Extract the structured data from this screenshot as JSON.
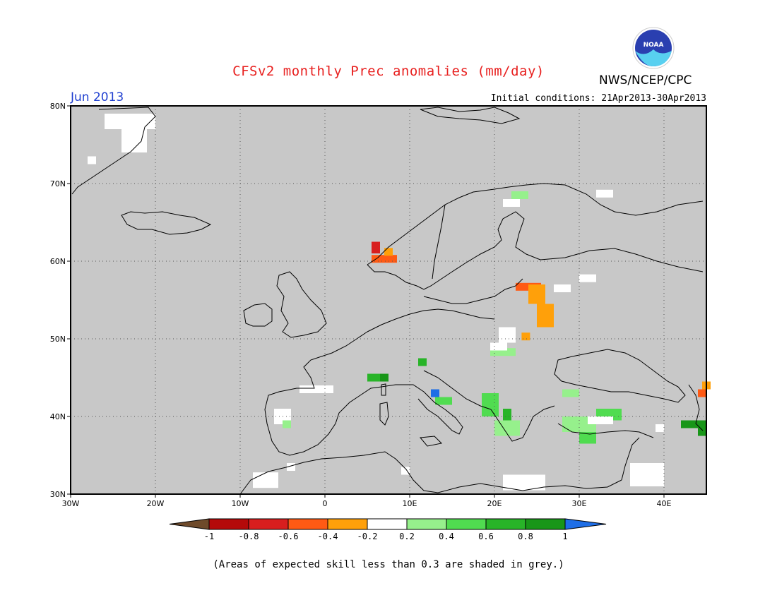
{
  "header": {
    "title": "CFSv2 monthly Prec anomalies (mm/day)",
    "agency": "NWS/NCEP/CPC",
    "logo_text": "NOAA",
    "month": "Jun 2013",
    "initial_conditions": "Initial conditions: 21Apr2013-30Apr2013"
  },
  "map": {
    "lon_range": [
      -30,
      45
    ],
    "lat_range": [
      30,
      80
    ],
    "background_color": "#c8c8c8",
    "gridlines": "dotted",
    "lon_tick_labels": [
      "30W",
      "20W",
      "10W",
      "0",
      "10E",
      "20E",
      "30E",
      "40E"
    ],
    "lat_tick_labels": [
      "80N",
      "70N",
      "60N",
      "50N",
      "40N",
      "30N"
    ]
  },
  "legend": {
    "bins": [
      {
        "color": "#6e4a2a"
      },
      {
        "color": "#b40a0a"
      },
      {
        "color": "#d81e1e"
      },
      {
        "color": "#ff5a14"
      },
      {
        "color": "#ffa00a"
      },
      {
        "color": "#ffffff"
      },
      {
        "color": "#96f08c"
      },
      {
        "color": "#50dc50"
      },
      {
        "color": "#28b428"
      },
      {
        "color": "#189618"
      },
      {
        "color": "#1e6ee6"
      }
    ],
    "tick_labels": [
      "-1",
      "-0.8",
      "-0.6",
      "-0.4",
      "-0.2",
      "0.2",
      "0.4",
      "0.6",
      "0.8",
      "1"
    ]
  },
  "anomaly_cells": [
    {
      "lon": -26,
      "lat": 77,
      "w": 6,
      "h": 2,
      "value": 0
    },
    {
      "lon": -24,
      "lat": 74,
      "w": 3,
      "h": 3,
      "value": 0
    },
    {
      "lon": -28,
      "lat": 72.5,
      "w": 1,
      "h": 1,
      "value": 0
    },
    {
      "lon": 5.5,
      "lat": 61,
      "w": 1,
      "h": 1.5,
      "value": -0.7
    },
    {
      "lon": 5.5,
      "lat": 59.8,
      "w": 3,
      "h": 1,
      "value": -0.5
    },
    {
      "lon": 7,
      "lat": 60.7,
      "w": 1,
      "h": 1,
      "value": -0.3
    },
    {
      "lon": 21,
      "lat": 67,
      "w": 2,
      "h": 1,
      "value": 0
    },
    {
      "lon": 22,
      "lat": 68,
      "w": 2,
      "h": 1,
      "value": 0.3
    },
    {
      "lon": 22.5,
      "lat": 56.2,
      "w": 3,
      "h": 1,
      "value": -0.5
    },
    {
      "lon": 24,
      "lat": 54.5,
      "w": 2,
      "h": 2.5,
      "value": -0.3
    },
    {
      "lon": 25,
      "lat": 51.5,
      "w": 2,
      "h": 3,
      "value": -0.3
    },
    {
      "lon": 27,
      "lat": 56,
      "w": 2,
      "h": 1,
      "value": 0
    },
    {
      "lon": 20.5,
      "lat": 49.5,
      "w": 2,
      "h": 2,
      "value": 0
    },
    {
      "lon": 23.2,
      "lat": 49.8,
      "w": 1,
      "h": 1,
      "value": -0.3
    },
    {
      "lon": 30,
      "lat": 57.3,
      "w": 2,
      "h": 1,
      "value": 0
    },
    {
      "lon": 32,
      "lat": 68.2,
      "w": 2,
      "h": 1,
      "value": 0
    },
    {
      "lon": 19.5,
      "lat": 47.8,
      "w": 3,
      "h": 1,
      "value": 0.3
    },
    {
      "lon": 19.5,
      "lat": 48.5,
      "w": 2,
      "h": 1,
      "value": 0
    },
    {
      "lon": 5,
      "lat": 44.5,
      "w": 2,
      "h": 1,
      "value": 0.7
    },
    {
      "lon": 6.5,
      "lat": 44.5,
      "w": 1,
      "h": 1,
      "value": 0.9
    },
    {
      "lon": 11,
      "lat": 46.5,
      "w": 1,
      "h": 1,
      "value": 0.7
    },
    {
      "lon": 12.5,
      "lat": 42.5,
      "w": 1,
      "h": 1,
      "value": 1
    },
    {
      "lon": 13,
      "lat": 41.5,
      "w": 2,
      "h": 1,
      "value": 0.5
    },
    {
      "lon": 18.5,
      "lat": 40,
      "w": 2,
      "h": 3,
      "value": 0.4
    },
    {
      "lon": 21,
      "lat": 39,
      "w": 1,
      "h": 2,
      "value": 0.7
    },
    {
      "lon": 20,
      "lat": 37.5,
      "w": 3,
      "h": 2,
      "value": 0.3
    },
    {
      "lon": 28,
      "lat": 38,
      "w": 4,
      "h": 2,
      "value": 0.3
    },
    {
      "lon": 30,
      "lat": 36.5,
      "w": 2,
      "h": 1.5,
      "value": 0.4
    },
    {
      "lon": 32,
      "lat": 39.5,
      "w": 3,
      "h": 1.5,
      "value": 0.4
    },
    {
      "lon": 31,
      "lat": 39,
      "w": 3,
      "h": 1,
      "value": 0
    },
    {
      "lon": 28,
      "lat": 42.5,
      "w": 2,
      "h": 1,
      "value": 0.3
    },
    {
      "lon": -3,
      "lat": 43,
      "w": 4,
      "h": 1,
      "value": 0
    },
    {
      "lon": -6,
      "lat": 39,
      "w": 2,
      "h": 2,
      "value": 0
    },
    {
      "lon": -5,
      "lat": 38.5,
      "w": 1,
      "h": 1,
      "value": 0.3
    },
    {
      "lon": -4.5,
      "lat": 33,
      "w": 1,
      "h": 1,
      "value": 0
    },
    {
      "lon": -8.5,
      "lat": 30.8,
      "w": 3,
      "h": 2,
      "value": 0
    },
    {
      "lon": 9,
      "lat": 32.5,
      "w": 1,
      "h": 1,
      "value": 0
    },
    {
      "lon": 21,
      "lat": 30.5,
      "w": 5,
      "h": 2,
      "value": 0
    },
    {
      "lon": 36,
      "lat": 31,
      "w": 4,
      "h": 3,
      "value": 0
    },
    {
      "lon": 39,
      "lat": 38,
      "w": 1,
      "h": 1,
      "value": 0
    },
    {
      "lon": 42,
      "lat": 38.5,
      "w": 3,
      "h": 1,
      "value": 0.8
    },
    {
      "lon": 44,
      "lat": 37.5,
      "w": 1,
      "h": 2,
      "value": 0.8
    },
    {
      "lon": 44,
      "lat": 42.5,
      "w": 1,
      "h": 1,
      "value": -0.5
    },
    {
      "lon": 44.5,
      "lat": 43.5,
      "w": 1,
      "h": 1,
      "value": -0.3
    }
  ],
  "footnote": "(Areas of expected skill less than 0.3 are shaded in grey.)"
}
